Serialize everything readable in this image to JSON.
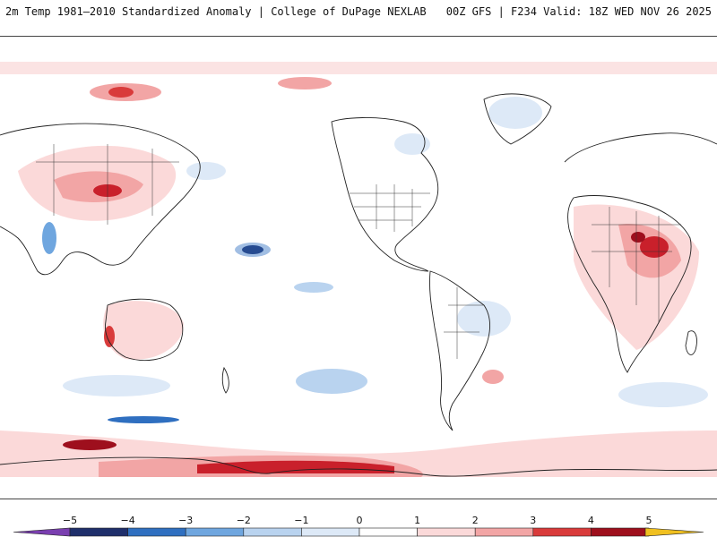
{
  "header": {
    "left_title": "2m Temp 1981–2010 Standardized Anomaly | College of DuPage NEXLAB",
    "right_title": "00Z GFS | F234 Valid: 18Z WED NOV 26 2025"
  },
  "map": {
    "projection": "global lat/lon",
    "variable": "2m Temp Standardized Anomaly"
  },
  "colorbar": {
    "tick_labels": [
      "−5",
      "−4",
      "−3",
      "−2",
      "−1",
      "0",
      "1",
      "2",
      "3",
      "4",
      "5"
    ],
    "colors": {
      "lt_minus5": "#7a3fb0",
      "minus5": "#1f2f6b",
      "minus4": "#2f6fc0",
      "minus3": "#6fa6df",
      "minus2": "#b9d3ef",
      "minus1": "#dde9f7",
      "zero": "#ffffff",
      "plus1": "#fbd9d9",
      "plus2": "#f2a5a5",
      "plus3": "#d93b3b",
      "plus4": "#9e0f1d",
      "gt_plus5": "#f0c020"
    }
  }
}
